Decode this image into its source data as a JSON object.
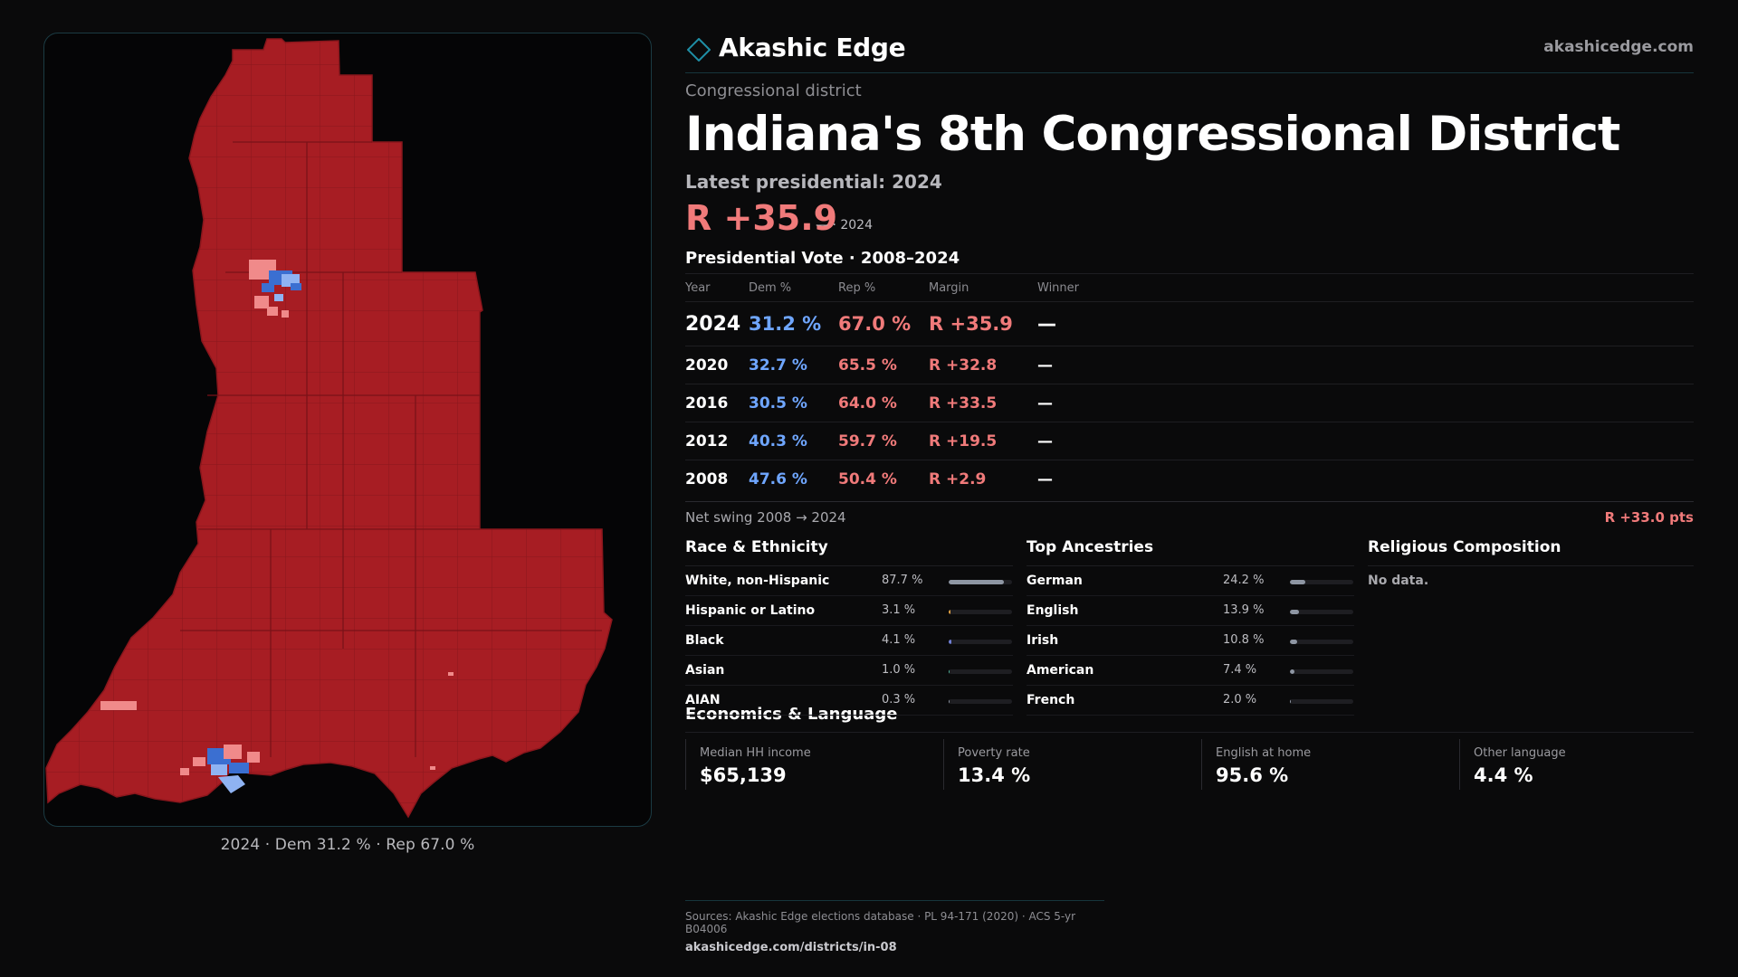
{
  "map": {
    "caption": "2024 · Dem 31.2 % · Rep 67.0 %",
    "colors": {
      "rep": "#a71d23",
      "dem": "#3b6fd1",
      "lean_dem": "#8fb3f2",
      "lean_rep": "#f08a8a"
    }
  },
  "brand": {
    "name": "Akashic Edge",
    "url": "akashicedge.com",
    "accent": "#1f8fa6"
  },
  "header": {
    "kicker": "Congressional district",
    "title": "Indiana's 8th Congressional District",
    "latest": "Latest presidential: 2024",
    "margin": "R +35.9",
    "margin_note": "— · 2024",
    "table_title": "Presidential Vote · 2008–2024"
  },
  "vote_table": {
    "columns": [
      "Year",
      "Dem %",
      "Rep %",
      "Margin",
      "Winner"
    ],
    "rows": [
      {
        "year": "2024",
        "dem": "31.2 %",
        "rep": "67.0 %",
        "margin": "R +35.9",
        "winner": "—"
      },
      {
        "year": "2020",
        "dem": "32.7 %",
        "rep": "65.5 %",
        "margin": "R +32.8",
        "winner": "—"
      },
      {
        "year": "2016",
        "dem": "30.5 %",
        "rep": "64.0 %",
        "margin": "R +33.5",
        "winner": "—"
      },
      {
        "year": "2012",
        "dem": "40.3 %",
        "rep": "59.7 %",
        "margin": "R +19.5",
        "winner": "—"
      },
      {
        "year": "2008",
        "dem": "47.6 %",
        "rep": "50.4 %",
        "margin": "R +2.9",
        "winner": "—"
      }
    ],
    "swing_label": "Net swing 2008 → 2024",
    "swing_value": "R +33.0 pts"
  },
  "race": {
    "title": "Race & Ethnicity",
    "items": [
      {
        "label": "White, non-Hispanic",
        "value": "87.7 %",
        "pct": 87.7,
        "color": "#8e96a3"
      },
      {
        "label": "Hispanic or Latino",
        "value": "3.1 %",
        "pct": 3.1,
        "color": "#e0a042"
      },
      {
        "label": "Black",
        "value": "4.1 %",
        "pct": 4.1,
        "color": "#6f7fd6"
      },
      {
        "label": "Asian",
        "value": "1.0 %",
        "pct": 1.0,
        "color": "#4fb39a"
      },
      {
        "label": "AIAN",
        "value": "0.3 %",
        "pct": 0.3,
        "color": "#8e96a3"
      }
    ]
  },
  "ancestry": {
    "title": "Top Ancestries",
    "items": [
      {
        "label": "German",
        "value": "24.2 %",
        "pct": 24.2,
        "color": "#8e96a3"
      },
      {
        "label": "English",
        "value": "13.9 %",
        "pct": 13.9,
        "color": "#8e96a3"
      },
      {
        "label": "Irish",
        "value": "10.8 %",
        "pct": 10.8,
        "color": "#8e96a3"
      },
      {
        "label": "American",
        "value": "7.4 %",
        "pct": 7.4,
        "color": "#8e96a3"
      },
      {
        "label": "French",
        "value": "2.0 %",
        "pct": 2.0,
        "color": "#8e96a3"
      }
    ]
  },
  "religion": {
    "title": "Religious Composition",
    "note": "No data."
  },
  "economics": {
    "title": "Economics & Language",
    "cells": [
      {
        "label": "Median HH income",
        "value": "$65,139"
      },
      {
        "label": "Poverty rate",
        "value": "13.4 %"
      },
      {
        "label": "English at home",
        "value": "95.6 %"
      },
      {
        "label": "Other language",
        "value": "4.4 %"
      }
    ]
  },
  "footer": {
    "sources": "Sources: Akashic Edge elections database · PL 94-171 (2020) · ACS 5-yr B04006",
    "link": "akashicedge.com/districts/in-08"
  }
}
